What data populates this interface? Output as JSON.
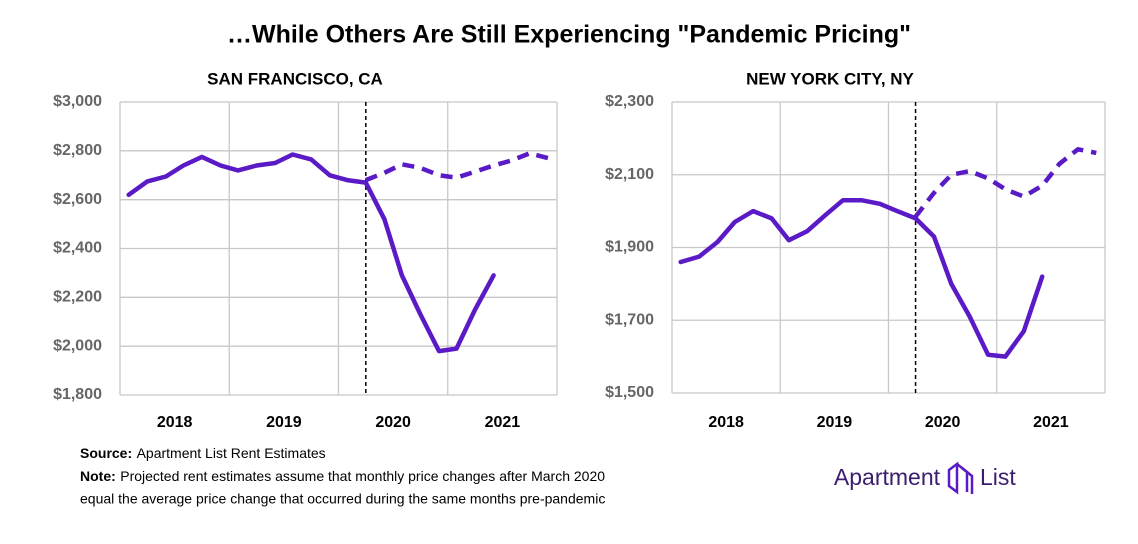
{
  "title": "…While Others Are Still Experiencing \"Pandemic Pricing\"",
  "source_label": "Source:",
  "source": "Apartment List Rent Estimates",
  "note_label": "Note:",
  "note_lines": [
    "Projected rent estimates assume that monthly price changes after March 2020",
    "equal the average price change that occurred during the same months pre-pandemic"
  ],
  "logo": [
    "Apartment",
    "List"
  ],
  "chart_data": [
    {
      "type": "line",
      "title": "SAN FRANCISCO, CA",
      "x": [
        2018.08,
        2018.25,
        2018.42,
        2018.58,
        2018.75,
        2018.92,
        2019.08,
        2019.25,
        2019.42,
        2019.58,
        2019.75,
        2019.92,
        2020.08,
        2020.25,
        2020.42,
        2020.58,
        2020.75,
        2020.92,
        2021.08,
        2021.25,
        2021.42,
        2021.58,
        2021.75,
        2021.92
      ],
      "series": [
        {
          "color": "#5a1bc6",
          "dashed": false,
          "values": [
            2620,
            2675,
            2695,
            2740,
            2775,
            2740,
            2720,
            2740,
            2750,
            2785,
            2765,
            2700,
            2680,
            2670,
            2520,
            2290,
            2130,
            1980,
            1990,
            2150,
            2290,
            null,
            null,
            null
          ]
        },
        {
          "color": "#5a1bc6",
          "dashed": true,
          "values": [
            null,
            null,
            null,
            null,
            null,
            null,
            null,
            null,
            null,
            null,
            null,
            null,
            null,
            2680,
            2710,
            2745,
            2730,
            2700,
            2690,
            2715,
            2740,
            2760,
            2790,
            2770
          ]
        }
      ],
      "xlim": [
        2018,
        2022
      ],
      "xticks": [
        {
          "value": 2018.5,
          "label": "2018"
        },
        {
          "value": 2019.5,
          "label": "2019"
        },
        {
          "value": 2020.5,
          "label": "2020"
        },
        {
          "value": 2021.5,
          "label": "2021"
        }
      ],
      "xgrid": [
        2018,
        2019,
        2020,
        2021,
        2022
      ],
      "vline": 2020.25,
      "ylim": [
        1800,
        3000
      ],
      "yticks": [
        {
          "value": 1800,
          "label": "$1,800"
        },
        {
          "value": 2000,
          "label": "$2,000"
        },
        {
          "value": 2200,
          "label": "$2,200"
        },
        {
          "value": 2400,
          "label": "$2,400"
        },
        {
          "value": 2600,
          "label": "$2,600"
        },
        {
          "value": 2800,
          "label": "$2,800"
        },
        {
          "value": 3000,
          "label": "$3,000"
        }
      ],
      "grid": true
    },
    {
      "type": "line",
      "title": "NEW YORK CITY, NY",
      "x": [
        2018.08,
        2018.25,
        2018.42,
        2018.58,
        2018.75,
        2018.92,
        2019.08,
        2019.25,
        2019.42,
        2019.58,
        2019.75,
        2019.92,
        2020.08,
        2020.25,
        2020.42,
        2020.58,
        2020.75,
        2020.92,
        2021.08,
        2021.25,
        2021.42,
        2021.58,
        2021.75,
        2021.92
      ],
      "series": [
        {
          "color": "#5a1bc6",
          "dashed": false,
          "values": [
            1860,
            1875,
            1915,
            1970,
            2000,
            1980,
            1920,
            1945,
            1990,
            2030,
            2030,
            2020,
            2000,
            1980,
            1930,
            1800,
            1710,
            1605,
            1600,
            1670,
            1820,
            null,
            null,
            null
          ]
        },
        {
          "color": "#5a1bc6",
          "dashed": true,
          "values": [
            null,
            null,
            null,
            null,
            null,
            null,
            null,
            null,
            null,
            null,
            null,
            null,
            null,
            1985,
            2050,
            2100,
            2110,
            2090,
            2060,
            2040,
            2070,
            2130,
            2170,
            2160
          ]
        }
      ],
      "xlim": [
        2018,
        2022
      ],
      "xticks": [
        {
          "value": 2018.5,
          "label": "2018"
        },
        {
          "value": 2019.5,
          "label": "2019"
        },
        {
          "value": 2020.5,
          "label": "2020"
        },
        {
          "value": 2021.5,
          "label": "2021"
        }
      ],
      "xgrid": [
        2018,
        2019,
        2020,
        2021,
        2022
      ],
      "vline": 2020.25,
      "ylim": [
        1500,
        2300
      ],
      "yticks": [
        {
          "value": 1500,
          "label": "$1,500"
        },
        {
          "value": 1700,
          "label": "$1,700"
        },
        {
          "value": 1900,
          "label": "$1,900"
        },
        {
          "value": 2100,
          "label": "$2,100"
        },
        {
          "value": 2300,
          "label": "$2,300"
        }
      ],
      "grid": true
    }
  ]
}
